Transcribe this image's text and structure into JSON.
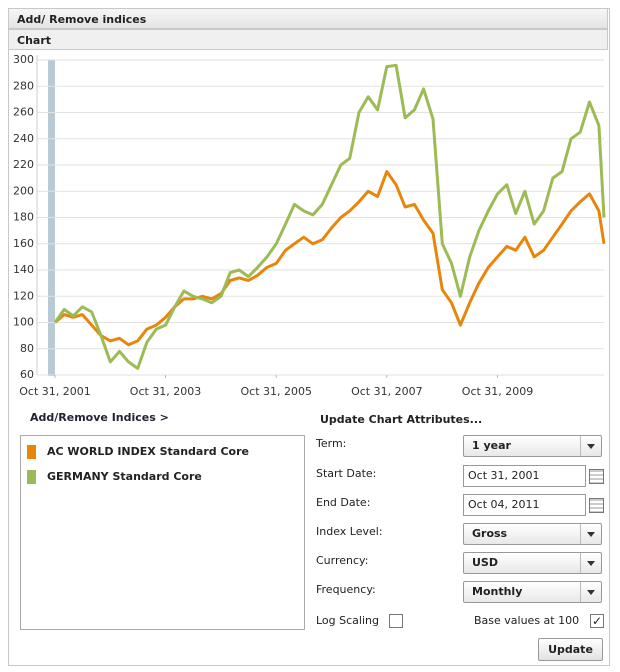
{
  "header": {
    "title": "Add/ Remove indices",
    "section": "Chart"
  },
  "chart_data": {
    "type": "line",
    "x": [
      "2001-10-31",
      "2001-12-31",
      "2002-02-28",
      "2002-04-30",
      "2002-06-30",
      "2002-08-31",
      "2002-10-31",
      "2002-12-31",
      "2003-02-28",
      "2003-04-30",
      "2003-06-30",
      "2003-08-31",
      "2003-10-31",
      "2003-12-31",
      "2004-02-29",
      "2004-04-30",
      "2004-06-30",
      "2004-08-31",
      "2004-10-31",
      "2004-12-31",
      "2005-02-28",
      "2005-04-30",
      "2005-06-30",
      "2005-08-31",
      "2005-10-31",
      "2005-12-31",
      "2006-02-28",
      "2006-04-30",
      "2006-06-30",
      "2006-08-31",
      "2006-10-31",
      "2006-12-31",
      "2007-02-28",
      "2007-04-30",
      "2007-06-30",
      "2007-08-31",
      "2007-10-31",
      "2007-12-31",
      "2008-02-29",
      "2008-04-30",
      "2008-06-30",
      "2008-08-31",
      "2008-10-31",
      "2008-12-31",
      "2009-02-28",
      "2009-04-30",
      "2009-06-30",
      "2009-08-31",
      "2009-10-31",
      "2009-12-31",
      "2010-02-28",
      "2010-04-30",
      "2010-06-30",
      "2010-08-31",
      "2010-10-31",
      "2010-12-31",
      "2011-02-28",
      "2011-04-30",
      "2011-06-30",
      "2011-08-31",
      "2011-10-04"
    ],
    "series": [
      {
        "name": "AC WORLD INDEX Standard Core",
        "color": "#e8860c",
        "values": [
          100,
          106,
          104,
          106,
          98,
          90,
          86,
          88,
          83,
          86,
          95,
          98,
          104,
          112,
          118,
          118,
          120,
          118,
          122,
          132,
          134,
          132,
          136,
          142,
          145,
          155,
          160,
          165,
          160,
          163,
          172,
          180,
          185,
          192,
          200,
          196,
          215,
          205,
          188,
          190,
          178,
          168,
          125,
          115,
          98,
          115,
          130,
          142,
          150,
          158,
          155,
          165,
          150,
          155,
          165,
          175,
          185,
          192,
          198,
          185,
          160
        ]
      },
      {
        "name": "GERMANY Standard Core",
        "color": "#9dbb55",
        "values": [
          100,
          110,
          105,
          112,
          108,
          90,
          70,
          78,
          70,
          65,
          85,
          95,
          98,
          112,
          124,
          120,
          118,
          115,
          120,
          138,
          140,
          135,
          142,
          150,
          160,
          175,
          190,
          185,
          182,
          190,
          205,
          220,
          225,
          260,
          272,
          262,
          295,
          296,
          256,
          262,
          278,
          255,
          160,
          145,
          120,
          150,
          170,
          185,
          198,
          205,
          183,
          200,
          175,
          185,
          210,
          215,
          240,
          245,
          268,
          250,
          180
        ]
      }
    ],
    "xlim": [
      "2001-10-31",
      "2011-10-04"
    ],
    "xticks": [
      {
        "value": "2001-10-31",
        "label": "Oct 31, 2001"
      },
      {
        "value": "2003-10-31",
        "label": "Oct 31, 2003"
      },
      {
        "value": "2005-10-31",
        "label": "Oct 31, 2005"
      },
      {
        "value": "2007-10-31",
        "label": "Oct 31, 2007"
      },
      {
        "value": "2009-10-31",
        "label": "Oct 31, 2009"
      }
    ],
    "ylim": [
      60,
      300
    ],
    "yticks": [
      60,
      80,
      100,
      120,
      140,
      160,
      180,
      200,
      220,
      240,
      260,
      280,
      300
    ],
    "grid": true
  },
  "indices": {
    "link": "Add/Remove Indices >"
  },
  "form": {
    "heading": "Update Chart Attributes...",
    "fields": [
      {
        "label": "Term:",
        "value": "1 year"
      },
      {
        "label": "Start Date:",
        "value": "Oct 31, 2001"
      },
      {
        "label": "End Date:",
        "value": "Oct 04, 2011"
      },
      {
        "label": "Index Level:",
        "value": "Gross"
      },
      {
        "label": "Currency:",
        "value": "USD"
      },
      {
        "label": "Frequency:",
        "value": "Monthly"
      }
    ],
    "log_scaling": {
      "label": "Log Scaling",
      "checked": false
    },
    "base_values": {
      "label": "Base values at 100",
      "checked": true
    },
    "button": "Update"
  }
}
